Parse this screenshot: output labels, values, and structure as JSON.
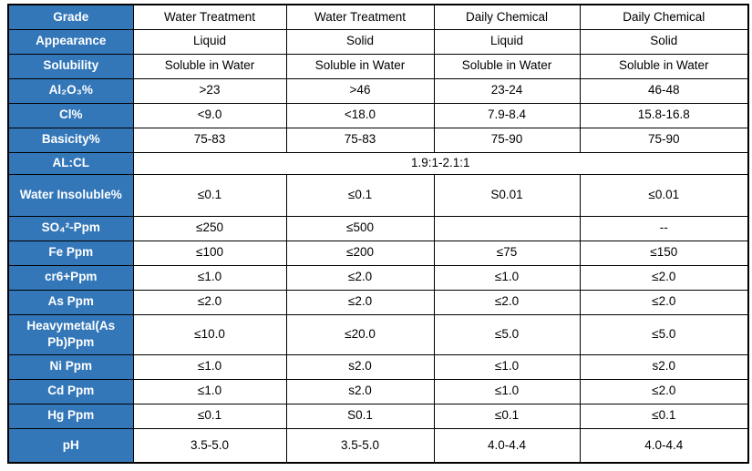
{
  "table": {
    "colors": {
      "header_bg": "#3377b9",
      "header_text": "#ffffff",
      "border": "#000000",
      "cell_bg": "#ffffff",
      "cell_text": "#000000"
    },
    "rows": [
      {
        "label": "Grade",
        "values": [
          "Water Treatment",
          "Water Treatment",
          "Daily Chemical",
          "Daily Chemical"
        ]
      },
      {
        "label": "Appearance",
        "values": [
          "Liquid",
          "Solid",
          "Liquid",
          "Solid"
        ]
      },
      {
        "label": "Solubility",
        "values": [
          "Soluble in Water",
          "Soluble in Water",
          "Soluble in Water",
          "Soluble in Water"
        ]
      },
      {
        "label": "Al₂O₃%",
        "values": [
          ">23",
          ">46",
          "23-24",
          "46-48"
        ]
      },
      {
        "label": "Cl%",
        "values": [
          "<9.0",
          "<18.0",
          "7.9-8.4",
          "15.8-16.8"
        ]
      },
      {
        "label": "Basicity%",
        "values": [
          "75-83",
          "75-83",
          "75-90",
          "75-90"
        ]
      },
      {
        "label": "AL:CL",
        "values": [
          "1.9:1-2.1:1"
        ],
        "colspan": 4
      },
      {
        "label": "Water Insoluble%",
        "values": [
          "≤0.1",
          "≤0.1",
          "S0.01",
          "≤0.01"
        ]
      },
      {
        "label": "SO₄²-Ppm",
        "values": [
          "≤250",
          "≤500",
          "",
          "--"
        ]
      },
      {
        "label": "Fe Ppm",
        "values": [
          "≤100",
          "≤200",
          "≤75",
          "≤150"
        ]
      },
      {
        "label": "cr6+Ppm",
        "values": [
          "≤1.0",
          "≤2.0",
          "≤1.0",
          "≤2.0"
        ]
      },
      {
        "label": "As Ppm",
        "values": [
          "≤2.0",
          "≤2.0",
          "≤2.0",
          "≤2.0"
        ]
      },
      {
        "label": "Heavymetal(As Pb)Ppm",
        "values": [
          "≤10.0",
          "≤20.0",
          "≤5.0",
          "≤5.0"
        ]
      },
      {
        "label": "Ni Ppm",
        "values": [
          "≤1.0",
          "s2.0",
          "≤1.0",
          "s2.0"
        ]
      },
      {
        "label": "Cd Ppm",
        "values": [
          "≤1.0",
          "s2.0",
          "≤1.0",
          "≤2.0"
        ]
      },
      {
        "label": "Hg Ppm",
        "values": [
          "≤0.1",
          "S0.1",
          "≤0.1",
          "≤0.1"
        ]
      },
      {
        "label": "pH",
        "values": [
          "3.5-5.0",
          "3.5-5.0",
          "4.0-4.4",
          "4.0-4.4"
        ]
      }
    ]
  }
}
